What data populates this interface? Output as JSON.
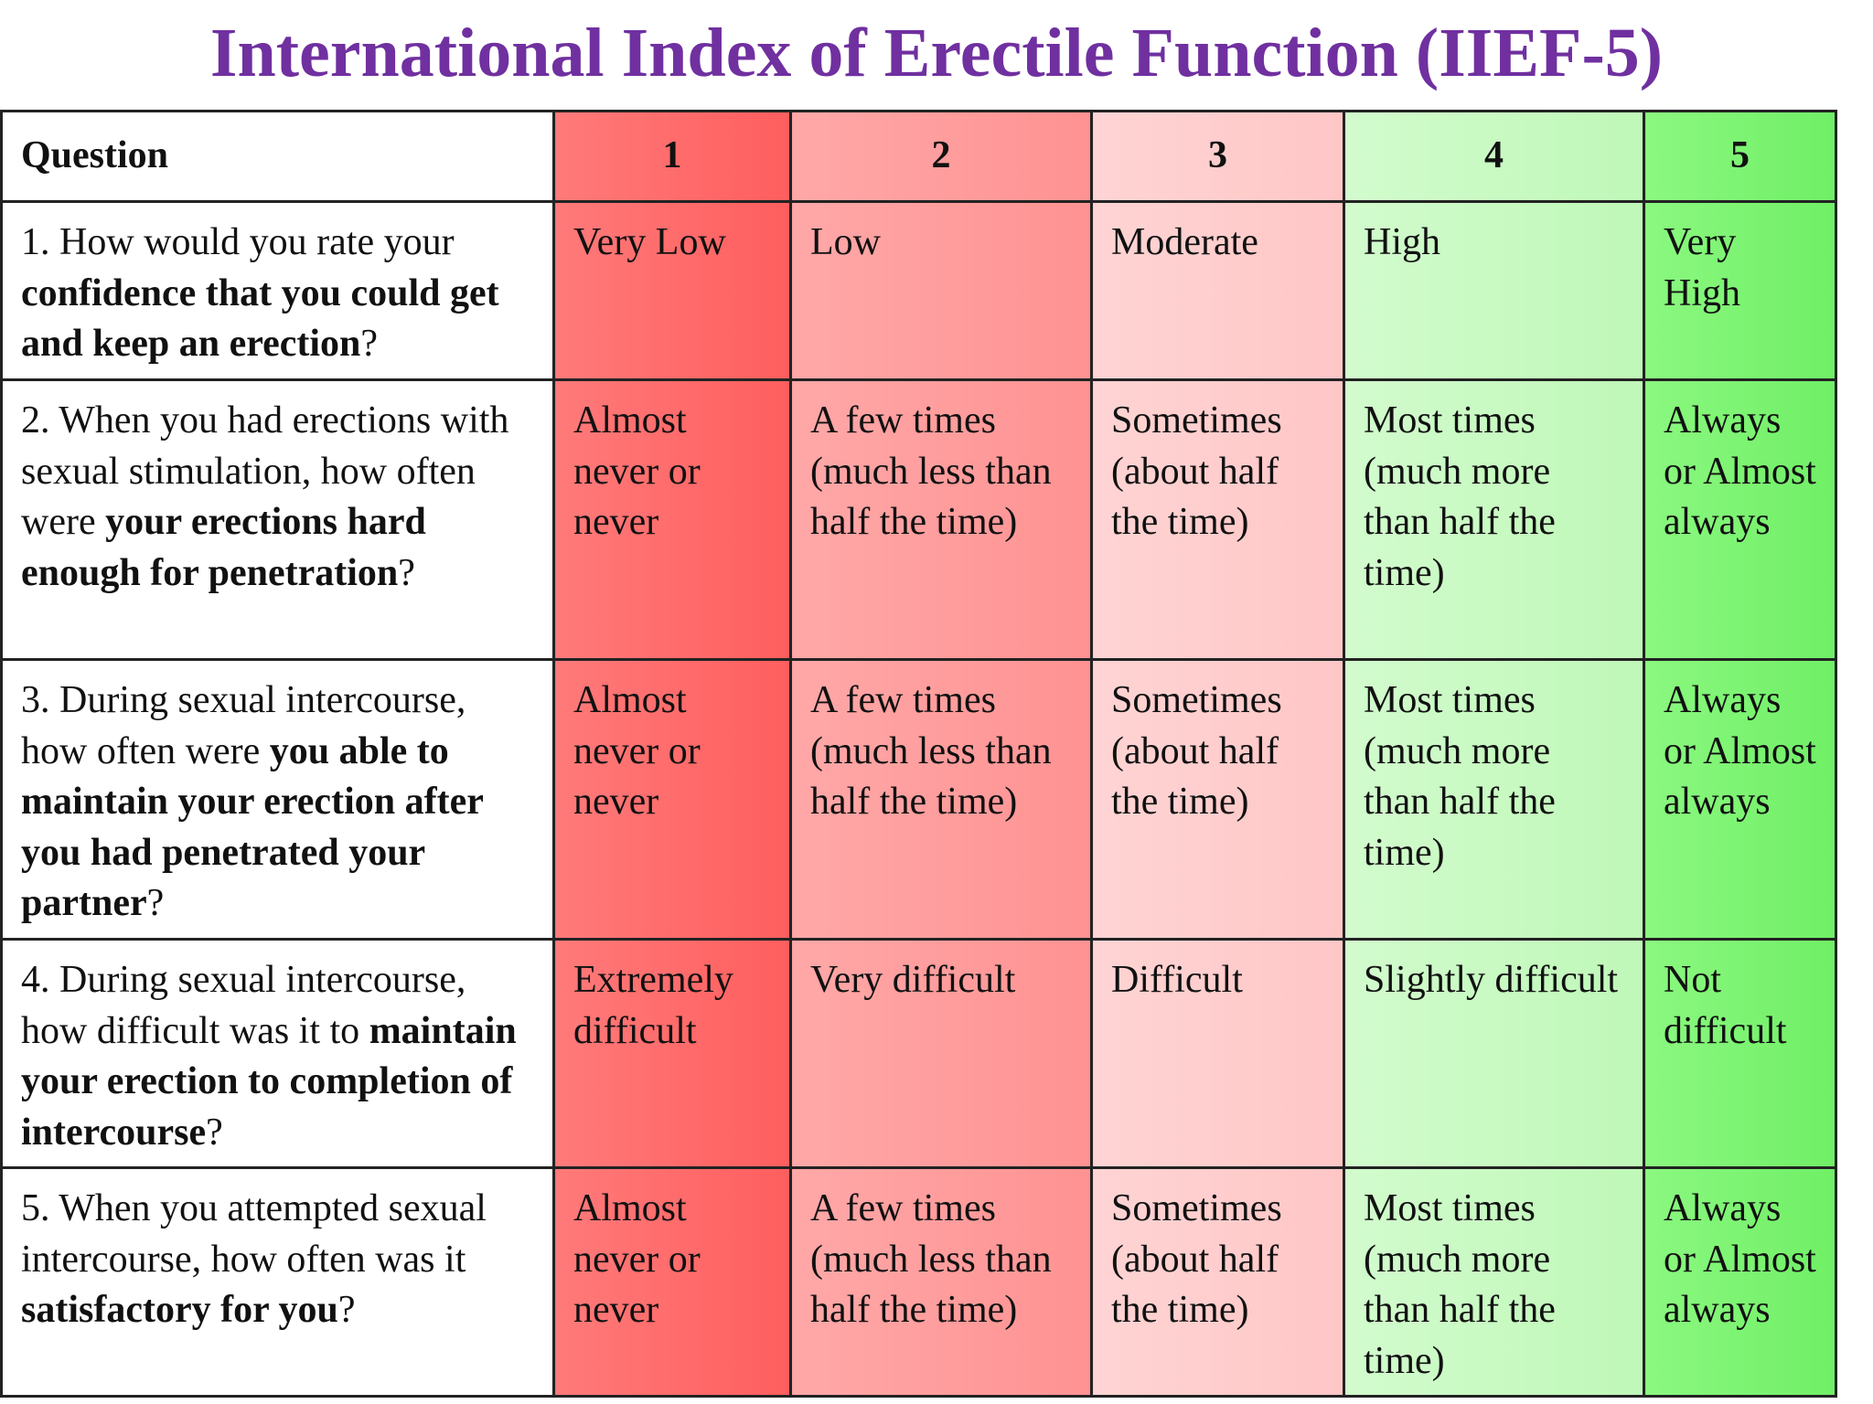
{
  "title": "International Index of Erectile Function (IIEF-5)",
  "table": {
    "header": {
      "question": "Question",
      "scores": [
        "1",
        "2",
        "3",
        "4",
        "5"
      ]
    },
    "rows": [
      {
        "q_pre": "1. How would you rate your ",
        "q_bold": "confidence that you could get and keep an erection",
        "q_post": "?",
        "answers": [
          "Very Low",
          "Low",
          "Moderate",
          "High",
          "Very High"
        ]
      },
      {
        "q_pre": "2. When you had erections with sexual stimulation, how often were ",
        "q_bold": "your erections hard enough for penetration",
        "q_post": "?",
        "answers": [
          "Almost never or never",
          "A few times (much less than half the time)",
          "Sometimes (about half the time)",
          "Most times (much more than half the time)",
          "Always or Almost always"
        ]
      },
      {
        "q_pre": "3. During sexual intercourse, how often were ",
        "q_bold": "you able to maintain your erection after you had penetrated your partner",
        "q_post": "?",
        "answers": [
          "Almost never or never",
          "A few times (much less than half the time)",
          "Sometimes (about half the time)",
          "Most times (much more than half the time)",
          "Always or Almost always"
        ]
      },
      {
        "q_pre": "4. During sexual intercourse, how difficult was it to ",
        "q_bold": "maintain your erection to completion of intercourse",
        "q_post": "?",
        "answers": [
          "Extremely difficult",
          "Very difficult",
          "Difficult",
          "Slightly difficult",
          "Not difficult"
        ]
      },
      {
        "q_pre": "5. When you attempted sexual intercourse, how often was it ",
        "q_bold": "satisfactory for you",
        "q_post": "?",
        "answers": [
          "Almost never or never",
          "A few times (much less than half the time)",
          "Sometimes (about half the time)",
          "Most times (much more than half the time)",
          "Always or Almost always"
        ]
      }
    ]
  },
  "colors": {
    "title": "#7030a0",
    "score_1": "#ff6666",
    "score_2": "#ff9999",
    "score_3": "#ffcccc",
    "score_4": "#c6f9c0",
    "score_5": "#7ff575"
  }
}
